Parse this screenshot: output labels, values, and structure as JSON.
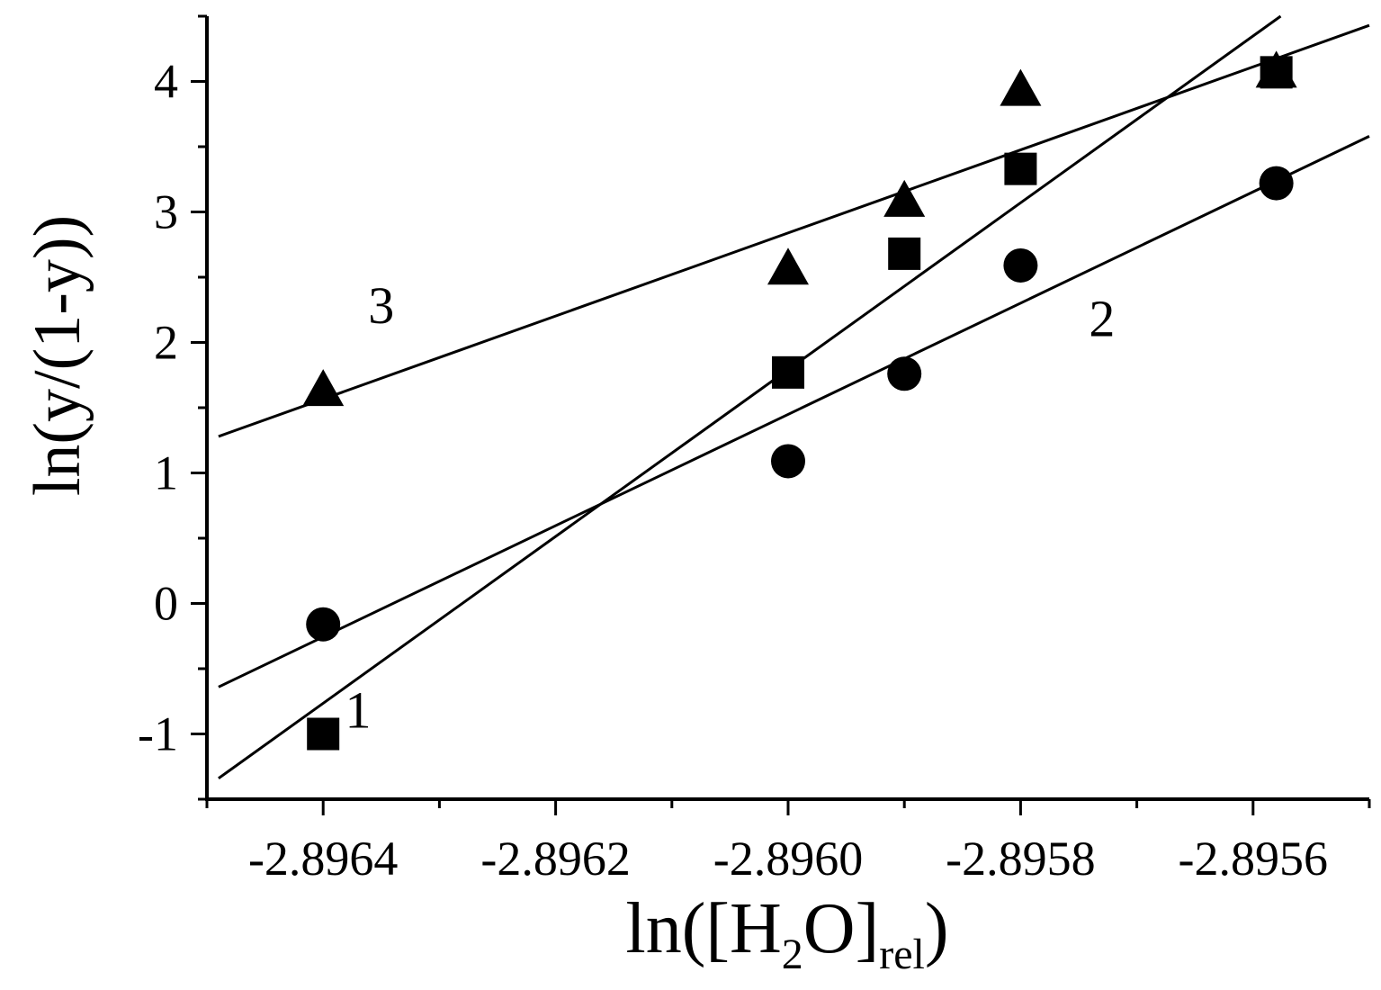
{
  "chart_data": {
    "type": "scatter",
    "xlabel": {
      "main": "ln([H",
      "sub1": "2",
      "mid": "O]",
      "sub2": "rel",
      "end": ")"
    },
    "ylabel": "ln(y/(1-y))",
    "xlim": [
      -2.8965,
      -2.8955
    ],
    "ylim": [
      -1.5,
      4.5
    ],
    "x_ticks": [
      -2.8964,
      -2.8962,
      -2.896,
      -2.8958,
      -2.8956
    ],
    "x_tick_labels": [
      "-2.8964",
      "-2.8962",
      "-2.8960",
      "-2.8958",
      "-2.8956"
    ],
    "y_ticks": [
      -1,
      0,
      1,
      2,
      3,
      4
    ],
    "y_tick_labels": [
      "-1",
      "0",
      "1",
      "2",
      "3",
      "4"
    ],
    "series": [
      {
        "label": "1",
        "marker": "square",
        "x": [
          -2.8964,
          -2.896,
          -2.8959,
          -2.8958,
          -2.89558
        ],
        "y": [
          -1.0,
          1.77,
          2.68,
          3.33,
          4.07
        ],
        "fit": {
          "x": [
            -2.89649,
            -2.89557
          ],
          "y": [
            -1.34,
            4.54
          ]
        },
        "label_pos": {
          "x": -2.89637,
          "y": -0.95
        }
      },
      {
        "label": "2",
        "marker": "circle",
        "x": [
          -2.8964,
          -2.896,
          -2.8959,
          -2.8958,
          -2.89558
        ],
        "y": [
          -0.16,
          1.09,
          1.76,
          2.59,
          3.22
        ],
        "fit": {
          "x": [
            -2.89649,
            -2.8955
          ],
          "y": [
            -0.64,
            3.58
          ]
        },
        "label_pos": {
          "x": -2.89573,
          "y": 2.05
        }
      },
      {
        "label": "3",
        "marker": "triangle",
        "x": [
          -2.8964,
          -2.896,
          -2.8959,
          -2.8958,
          -2.89558
        ],
        "y": [
          1.63,
          2.56,
          3.08,
          3.93,
          4.07
        ],
        "fit": {
          "x": [
            -2.89649,
            -2.8955
          ],
          "y": [
            1.28,
            4.43
          ]
        },
        "label_pos": {
          "x": -2.89635,
          "y": 2.15
        }
      }
    ]
  }
}
